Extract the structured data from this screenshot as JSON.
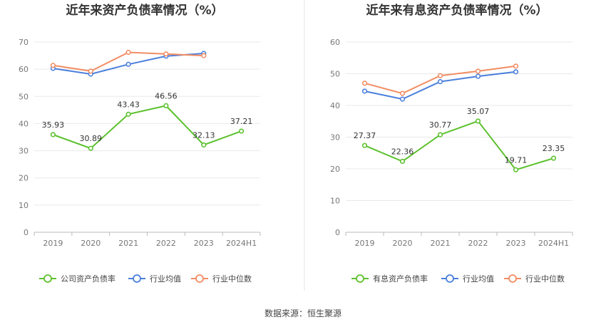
{
  "source": "数据来源：恒生聚源",
  "chart_data": [
    {
      "type": "line",
      "title": "近年来资产负债率情况（%）",
      "categories": [
        "2019",
        "2020",
        "2021",
        "2022",
        "2023",
        "2024H1"
      ],
      "ylim": [
        0,
        70
      ],
      "yticks": [
        0,
        10,
        20,
        30,
        40,
        50,
        60,
        70
      ],
      "grid": true,
      "legend_position": "bottom",
      "series": [
        {
          "name": "公司资产负债率",
          "color": "#5cc12e",
          "values": [
            35.93,
            30.89,
            43.43,
            46.56,
            32.13,
            37.21
          ],
          "labels": [
            "35.93",
            "30.89",
            "43.43",
            "46.56",
            "32.13",
            "37.21"
          ]
        },
        {
          "name": "行业均值",
          "color": "#4a7fdc",
          "values": [
            60.3,
            58.2,
            61.8,
            64.8,
            65.8,
            null
          ]
        },
        {
          "name": "行业中位数",
          "color": "#f28d63",
          "values": [
            61.4,
            59.3,
            66.2,
            65.6,
            65.0,
            null
          ]
        }
      ]
    },
    {
      "type": "line",
      "title": "近年来有息资产负债率情况（%）",
      "categories": [
        "2019",
        "2020",
        "2021",
        "2022",
        "2023",
        "2024H1"
      ],
      "ylim": [
        0,
        60
      ],
      "yticks": [
        0,
        10,
        20,
        30,
        40,
        50,
        60
      ],
      "grid": true,
      "legend_position": "bottom",
      "series": [
        {
          "name": "有息资产负债率",
          "color": "#5cc12e",
          "values": [
            27.37,
            22.36,
            30.77,
            35.07,
            19.71,
            23.35
          ],
          "labels": [
            "27.37",
            "22.36",
            "30.77",
            "35.07",
            "19.71",
            "23.35"
          ]
        },
        {
          "name": "行业均值",
          "color": "#4a7fdc",
          "values": [
            44.5,
            42.0,
            47.5,
            49.2,
            50.6,
            null
          ]
        },
        {
          "name": "行业中位数",
          "color": "#f28d63",
          "values": [
            47.0,
            43.8,
            49.4,
            50.8,
            52.4,
            null
          ]
        }
      ]
    }
  ]
}
